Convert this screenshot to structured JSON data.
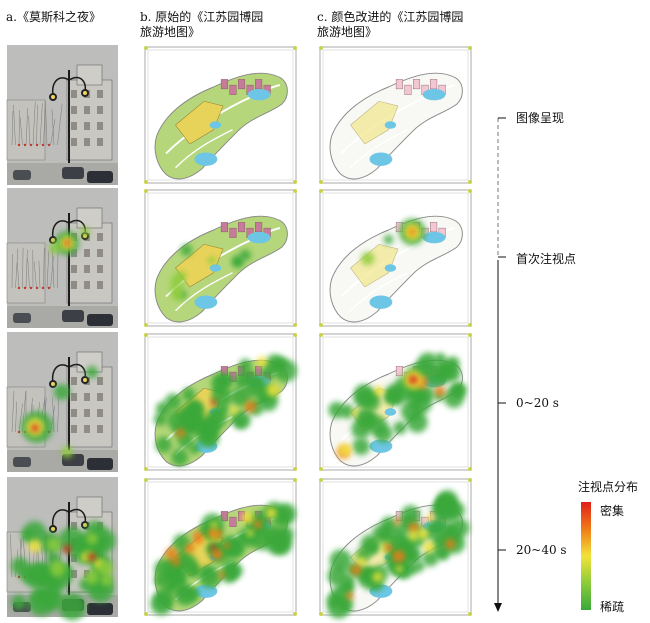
{
  "titles": {
    "a": "a.《莫斯科之夜》",
    "b": "b. 原始的《江苏园博园\n旅游地图》",
    "c": "c. 颜色改进的《江苏园博园\n旅游地图》"
  },
  "timeline": {
    "labels": [
      "图像呈现",
      "首次注视点",
      "0~20 s",
      "20~40 s"
    ]
  },
  "legend": {
    "title": "注视点分布",
    "high": "密集",
    "low": "稀疏",
    "colors": [
      "#e0201a",
      "#f07a18",
      "#f2e33a",
      "#8ccc3a",
      "#3aa83a"
    ]
  },
  "rows": [
    {
      "stage": "stimulus"
    },
    {
      "stage": "first-fixation"
    },
    {
      "stage": "0-20s"
    },
    {
      "stage": "20-40s"
    }
  ]
}
